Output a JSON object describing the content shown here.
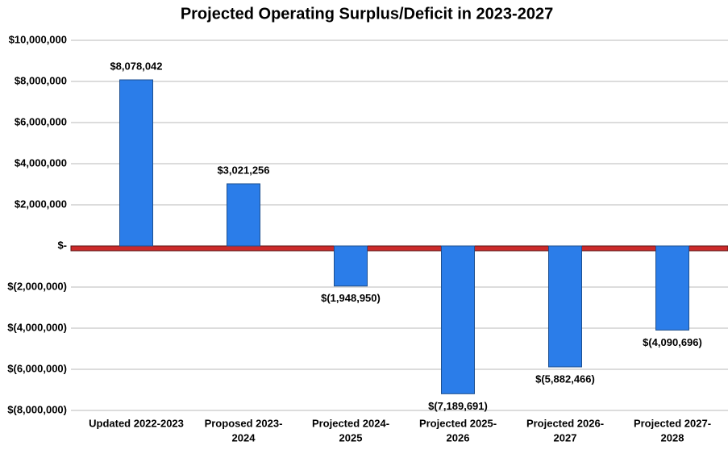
{
  "chart_data": {
    "type": "bar",
    "title": "Projected Operating Surplus/Deficit in 2023-2027",
    "categories": [
      [
        "Updated 2022-2023"
      ],
      [
        "Proposed 2023-",
        "2024"
      ],
      [
        "Projected 2024-",
        "2025"
      ],
      [
        "Projected 2025-",
        "2026"
      ],
      [
        "Projected 2026-",
        "2027"
      ],
      [
        "Projected 2027-",
        "2028"
      ]
    ],
    "values": [
      8078042,
      3021256,
      -1948950,
      -7189691,
      -5882466,
      -4090696
    ],
    "value_labels": [
      "$8,078,042",
      "$3,021,256",
      "$(1,948,950)",
      "$(7,189,691)",
      "$(5,882,466)",
      "$(4,090,696)"
    ],
    "color": "#2b7de9",
    "zero_line_color": "#cc2a2a",
    "ylim": [
      -8000000,
      10000000
    ],
    "yticks": [
      {
        "value": -8000000,
        "label": "$(8,000,000)"
      },
      {
        "value": -6000000,
        "label": "$(6,000,000)"
      },
      {
        "value": -4000000,
        "label": "$(4,000,000)"
      },
      {
        "value": -2000000,
        "label": "$(2,000,000)"
      },
      {
        "value": 0,
        "label": "$-"
      },
      {
        "value": 2000000,
        "label": "$2,000,000"
      },
      {
        "value": 4000000,
        "label": "$4,000,000"
      },
      {
        "value": 6000000,
        "label": "$6,000,000"
      },
      {
        "value": 8000000,
        "label": "$8,000,000"
      },
      {
        "value": 10000000,
        "label": "$10,000,000"
      }
    ],
    "grid": true
  }
}
